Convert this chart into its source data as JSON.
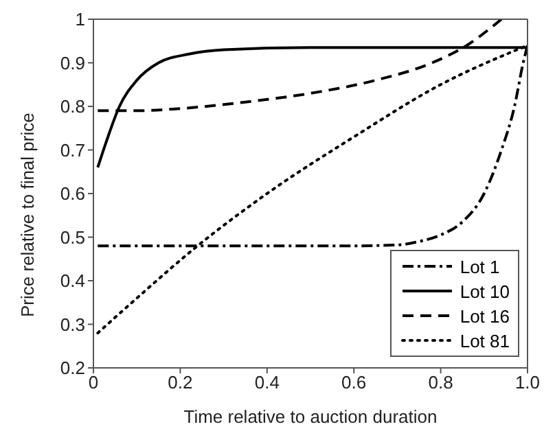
{
  "chart_data": {
    "type": "line",
    "xlabel": "Time relative to auction duration",
    "ylabel": "Price relative to final price",
    "xlim": [
      0,
      1
    ],
    "xticks": [
      0,
      0.2,
      0.4,
      0.6,
      0.8,
      {
        "value": 1,
        "label": "1.0"
      }
    ],
    "ylim": [
      0.2,
      1
    ],
    "yticks": [
      0.2,
      0.3,
      0.4,
      0.5,
      0.6,
      0.7,
      0.8,
      0.9,
      1
    ],
    "legend": "bottom right",
    "marker": "none",
    "series": [
      {
        "name": "Lot 1",
        "color": "#000000",
        "line_style": "dashdot",
        "x": [
          0.01,
          0.2,
          0.4,
          0.6,
          0.7,
          0.75,
          0.8,
          0.85,
          0.9,
          0.94,
          0.97,
          0.99,
          1.0
        ],
        "values": [
          0.48,
          0.48,
          0.48,
          0.48,
          0.482,
          0.49,
          0.505,
          0.535,
          0.6,
          0.7,
          0.8,
          0.9,
          0.94
        ]
      },
      {
        "name": "Lot 10",
        "color": "#000000",
        "line_style": "solid",
        "x": [
          0.01,
          0.03,
          0.06,
          0.1,
          0.15,
          0.22,
          0.3,
          0.5,
          0.7,
          1.0
        ],
        "values": [
          0.66,
          0.72,
          0.8,
          0.86,
          0.9,
          0.92,
          0.93,
          0.935,
          0.935,
          0.935
        ]
      },
      {
        "name": "Lot 16",
        "color": "#000000",
        "line_style": "dashed",
        "x": [
          0.01,
          0.1,
          0.2,
          0.35,
          0.5,
          0.65,
          0.78,
          0.86,
          0.94
        ],
        "values": [
          0.79,
          0.79,
          0.795,
          0.81,
          0.83,
          0.86,
          0.9,
          0.94,
          1.0
        ]
      },
      {
        "name": "Lot 81",
        "color": "#000000",
        "line_style": "dotted",
        "x": [
          0.01,
          0.1,
          0.24,
          0.4,
          0.6,
          0.8,
          1.0
        ],
        "values": [
          0.28,
          0.36,
          0.48,
          0.6,
          0.73,
          0.85,
          0.94
        ]
      }
    ]
  }
}
